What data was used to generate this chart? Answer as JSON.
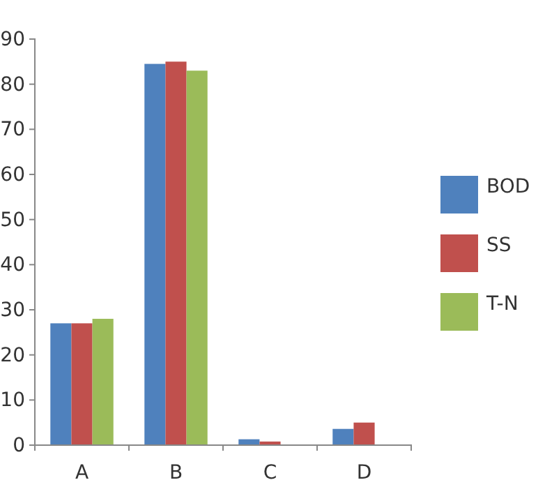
{
  "chart_data": {
    "type": "bar",
    "categories": [
      "A",
      "B",
      "C",
      "D"
    ],
    "series": [
      {
        "name": "BOD",
        "color": "#4f81bd",
        "values": [
          27,
          84.5,
          1.3,
          3.6
        ]
      },
      {
        "name": "SS",
        "color": "#c0504d",
        "values": [
          27,
          85,
          0.8,
          5
        ]
      },
      {
        "name": "T-N",
        "color": "#9bbb59",
        "values": [
          28,
          83,
          null,
          null
        ]
      }
    ],
    "ylim": [
      0,
      90
    ],
    "yticks": [
      0,
      10,
      20,
      30,
      40,
      50,
      60,
      70,
      80,
      90
    ],
    "grid": false,
    "legend": "right"
  }
}
